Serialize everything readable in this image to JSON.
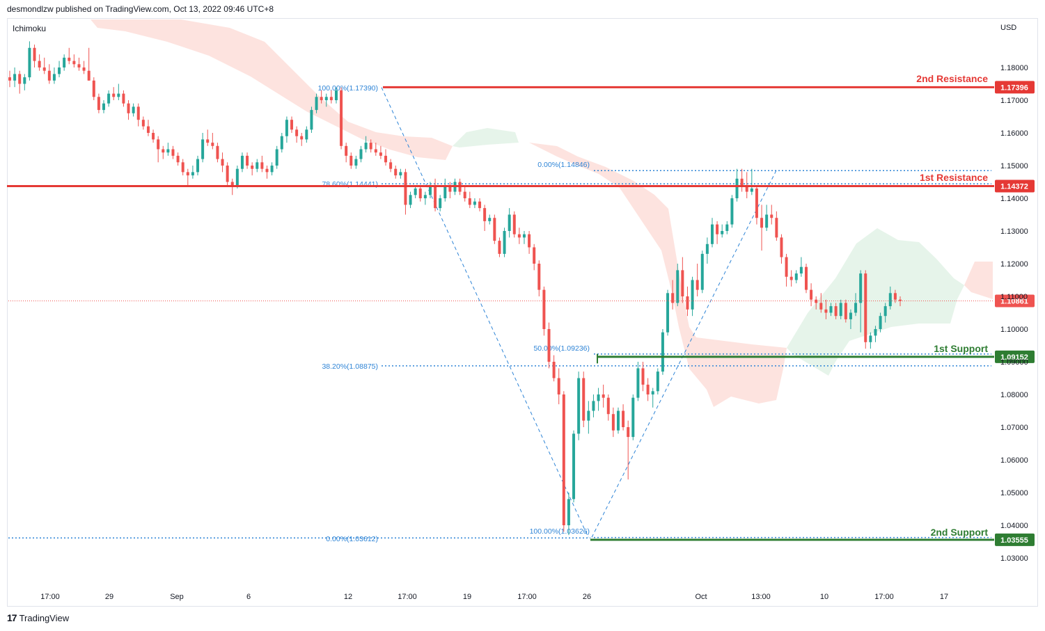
{
  "header": {
    "published": "desmondlzw published on TradingView.com, Oct 13, 2022 09:46 UTC+8",
    "indicator": "Ichimoku",
    "currency": "USD",
    "footer_brand": "TradingView",
    "footer_logo": "17"
  },
  "colors": {
    "up": "#26a69a",
    "down": "#ef5350",
    "resistance": "#e53935",
    "support": "#2e7d32",
    "fib": "#2e84d6",
    "cloud_bear": "#fde0dc",
    "cloud_bull": "#e6f4ea"
  },
  "chart_data": {
    "type": "candlestick",
    "ylim": [
      1.025,
      1.19
    ],
    "y_ticks": [
      "1.18000",
      "1.17000",
      "1.16000",
      "1.15000",
      "1.14000",
      "1.13000",
      "1.12000",
      "1.11000",
      "1.10000",
      "1.09000",
      "1.08000",
      "1.07000",
      "1.06000",
      "1.05000",
      "1.04000",
      "1.03000"
    ],
    "x_ticks": [
      "17:00",
      "29",
      "Sep",
      "6",
      "12",
      "17:00",
      "19",
      "17:00",
      "26",
      "Oct",
      "13:00",
      "10",
      "17:00",
      "17"
    ],
    "levels": [
      {
        "name": "2nd Resistance",
        "value": 1.17396,
        "tag": "1.17396",
        "kind": "resistance"
      },
      {
        "name": "1st Resistance",
        "value": 1.14372,
        "tag": "1.14372",
        "kind": "resistance"
      },
      {
        "name": "1st Support",
        "value": 1.09152,
        "tag": "1.09152",
        "kind": "support"
      },
      {
        "name": "2nd Support",
        "value": 1.03555,
        "tag": "1.03555",
        "kind": "support"
      }
    ],
    "current_price": {
      "value": 1.10861,
      "tag": "1.10861"
    },
    "fib_labels": [
      {
        "text": "100.00%(1.17390)",
        "value": 1.1739
      },
      {
        "text": "78.60%(1.14441)",
        "value": 1.14441
      },
      {
        "text": "38.20%(1.08875)",
        "value": 1.08875
      },
      {
        "text": "0.00%(1.03612)",
        "value": 1.03612
      },
      {
        "text": "0.00%(1.14846)",
        "value": 1.14846
      },
      {
        "text": "50.00%(1.09236)",
        "value": 1.09236
      },
      {
        "text": "100.00%(1.03626)",
        "value": 1.03626
      }
    ],
    "candles": [
      [
        1.177,
        1.179,
        1.174,
        1.176
      ],
      [
        1.176,
        1.18,
        1.174,
        1.178
      ],
      [
        1.178,
        1.179,
        1.172,
        1.175
      ],
      [
        1.175,
        1.178,
        1.173,
        1.177
      ],
      [
        1.177,
        1.188,
        1.176,
        1.186
      ],
      [
        1.186,
        1.187,
        1.18,
        1.182
      ],
      [
        1.182,
        1.184,
        1.179,
        1.18
      ],
      [
        1.18,
        1.183,
        1.178,
        1.179
      ],
      [
        1.179,
        1.181,
        1.175,
        1.176
      ],
      [
        1.176,
        1.18,
        1.175,
        1.178
      ],
      [
        1.178,
        1.182,
        1.177,
        1.18
      ],
      [
        1.18,
        1.184,
        1.179,
        1.183
      ],
      [
        1.183,
        1.186,
        1.181,
        1.182
      ],
      [
        1.182,
        1.184,
        1.18,
        1.181
      ],
      [
        1.181,
        1.183,
        1.179,
        1.18
      ],
      [
        1.18,
        1.182,
        1.178,
        1.179
      ],
      [
        1.179,
        1.186,
        1.176,
        1.176
      ],
      [
        1.176,
        1.177,
        1.17,
        1.171
      ],
      [
        1.171,
        1.172,
        1.166,
        1.167
      ],
      [
        1.167,
        1.17,
        1.166,
        1.169
      ],
      [
        1.169,
        1.173,
        1.168,
        1.172
      ],
      [
        1.172,
        1.174,
        1.17,
        1.171
      ],
      [
        1.171,
        1.175,
        1.17,
        1.172
      ],
      [
        1.172,
        1.173,
        1.168,
        1.169
      ],
      [
        1.169,
        1.17,
        1.164,
        1.166
      ],
      [
        1.166,
        1.169,
        1.165,
        1.168
      ],
      [
        1.168,
        1.169,
        1.162,
        1.164
      ],
      [
        1.164,
        1.165,
        1.161,
        1.162
      ],
      [
        1.162,
        1.164,
        1.159,
        1.16
      ],
      [
        1.16,
        1.161,
        1.157,
        1.158
      ],
      [
        1.158,
        1.159,
        1.151,
        1.155
      ],
      [
        1.155,
        1.156,
        1.152,
        1.154
      ],
      [
        1.154,
        1.157,
        1.153,
        1.155
      ],
      [
        1.155,
        1.156,
        1.152,
        1.153
      ],
      [
        1.153,
        1.154,
        1.15,
        1.151
      ],
      [
        1.151,
        1.152,
        1.147,
        1.148
      ],
      [
        1.148,
        1.149,
        1.144,
        1.147
      ],
      [
        1.147,
        1.15,
        1.146,
        1.148
      ],
      [
        1.148,
        1.153,
        1.147,
        1.152
      ],
      [
        1.152,
        1.16,
        1.151,
        1.158
      ],
      [
        1.158,
        1.161,
        1.156,
        1.157
      ],
      [
        1.157,
        1.16,
        1.155,
        1.156
      ],
      [
        1.156,
        1.157,
        1.151,
        1.152
      ],
      [
        1.152,
        1.154,
        1.148,
        1.15
      ],
      [
        1.15,
        1.151,
        1.144,
        1.145
      ],
      [
        1.145,
        1.146,
        1.141,
        1.144
      ],
      [
        1.144,
        1.15,
        1.143,
        1.149
      ],
      [
        1.149,
        1.154,
        1.148,
        1.153
      ],
      [
        1.153,
        1.154,
        1.149,
        1.15
      ],
      [
        1.15,
        1.151,
        1.147,
        1.149
      ],
      [
        1.149,
        1.152,
        1.148,
        1.151
      ],
      [
        1.151,
        1.153,
        1.148,
        1.149
      ],
      [
        1.149,
        1.15,
        1.146,
        1.148
      ],
      [
        1.148,
        1.151,
        1.147,
        1.15
      ],
      [
        1.15,
        1.156,
        1.149,
        1.155
      ],
      [
        1.155,
        1.16,
        1.154,
        1.159
      ],
      [
        1.159,
        1.165,
        1.157,
        1.164
      ],
      [
        1.164,
        1.165,
        1.16,
        1.161
      ],
      [
        1.161,
        1.162,
        1.157,
        1.159
      ],
      [
        1.159,
        1.16,
        1.156,
        1.158
      ],
      [
        1.158,
        1.162,
        1.157,
        1.161
      ],
      [
        1.161,
        1.168,
        1.16,
        1.167
      ],
      [
        1.167,
        1.172,
        1.166,
        1.171
      ],
      [
        1.171,
        1.173,
        1.169,
        1.17
      ],
      [
        1.17,
        1.172,
        1.168,
        1.171
      ],
      [
        1.171,
        1.173,
        1.169,
        1.17
      ],
      [
        1.17,
        1.1739,
        1.169,
        1.173
      ],
      [
        1.173,
        1.1739,
        1.155,
        1.156
      ],
      [
        1.156,
        1.157,
        1.151,
        1.153
      ],
      [
        1.153,
        1.154,
        1.149,
        1.15
      ],
      [
        1.15,
        1.153,
        1.149,
        1.152
      ],
      [
        1.152,
        1.156,
        1.151,
        1.155
      ],
      [
        1.155,
        1.159,
        1.154,
        1.157
      ],
      [
        1.157,
        1.158,
        1.154,
        1.155
      ],
      [
        1.155,
        1.157,
        1.153,
        1.154
      ],
      [
        1.154,
        1.156,
        1.152,
        1.153
      ],
      [
        1.153,
        1.155,
        1.15,
        1.151
      ],
      [
        1.151,
        1.152,
        1.148,
        1.149
      ],
      [
        1.149,
        1.15,
        1.146,
        1.147
      ],
      [
        1.147,
        1.149,
        1.146,
        1.148
      ],
      [
        1.148,
        1.149,
        1.135,
        1.138
      ],
      [
        1.138,
        1.142,
        1.137,
        1.141
      ],
      [
        1.141,
        1.144,
        1.14,
        1.143
      ],
      [
        1.143,
        1.144,
        1.139,
        1.14
      ],
      [
        1.14,
        1.142,
        1.138,
        1.141
      ],
      [
        1.141,
        1.145,
        1.14,
        1.144
      ],
      [
        1.144,
        1.146,
        1.136,
        1.137
      ],
      [
        1.137,
        1.141,
        1.136,
        1.14
      ],
      [
        1.14,
        1.146,
        1.139,
        1.144
      ],
      [
        1.144,
        1.145,
        1.14,
        1.142
      ],
      [
        1.142,
        1.146,
        1.141,
        1.145
      ],
      [
        1.145,
        1.146,
        1.141,
        1.142
      ],
      [
        1.142,
        1.144,
        1.139,
        1.14
      ],
      [
        1.14,
        1.142,
        1.137,
        1.138
      ],
      [
        1.138,
        1.14,
        1.137,
        1.139
      ],
      [
        1.139,
        1.14,
        1.136,
        1.137
      ],
      [
        1.137,
        1.138,
        1.13,
        1.133
      ],
      [
        1.133,
        1.135,
        1.132,
        1.134
      ],
      [
        1.134,
        1.135,
        1.126,
        1.127
      ],
      [
        1.127,
        1.128,
        1.122,
        1.123
      ],
      [
        1.123,
        1.131,
        1.122,
        1.13
      ],
      [
        1.13,
        1.137,
        1.128,
        1.135
      ],
      [
        1.135,
        1.136,
        1.128,
        1.129
      ],
      [
        1.129,
        1.131,
        1.126,
        1.128
      ],
      [
        1.128,
        1.13,
        1.126,
        1.129
      ],
      [
        1.129,
        1.13,
        1.123,
        1.125
      ],
      [
        1.125,
        1.126,
        1.118,
        1.12
      ],
      [
        1.12,
        1.121,
        1.11,
        1.112
      ],
      [
        1.112,
        1.113,
        1.098,
        1.1
      ],
      [
        1.1,
        1.102,
        1.088,
        1.09
      ],
      [
        1.09,
        1.092,
        1.084,
        1.085
      ],
      [
        1.085,
        1.088,
        1.077,
        1.08
      ],
      [
        1.08,
        1.081,
        1.038,
        1.04
      ],
      [
        1.04,
        1.05,
        1.037,
        1.048
      ],
      [
        1.048,
        1.069,
        1.047,
        1.068
      ],
      [
        1.068,
        1.087,
        1.066,
        1.085
      ],
      [
        1.085,
        1.087,
        1.07,
        1.072
      ],
      [
        1.072,
        1.078,
        1.068,
        1.075
      ],
      [
        1.075,
        1.08,
        1.073,
        1.078
      ],
      [
        1.078,
        1.082,
        1.075,
        1.08
      ],
      [
        1.08,
        1.083,
        1.076,
        1.079
      ],
      [
        1.079,
        1.08,
        1.072,
        1.074
      ],
      [
        1.074,
        1.076,
        1.067,
        1.069
      ],
      [
        1.069,
        1.076,
        1.068,
        1.075
      ],
      [
        1.075,
        1.077,
        1.069,
        1.07
      ],
      [
        1.07,
        1.072,
        1.054,
        1.067
      ],
      [
        1.067,
        1.08,
        1.066,
        1.079
      ],
      [
        1.079,
        1.09,
        1.078,
        1.088
      ],
      [
        1.088,
        1.09,
        1.081,
        1.083
      ],
      [
        1.083,
        1.085,
        1.078,
        1.08
      ],
      [
        1.08,
        1.082,
        1.076,
        1.081
      ],
      [
        1.081,
        1.088,
        1.08,
        1.087
      ],
      [
        1.087,
        1.1,
        1.086,
        1.099
      ],
      [
        1.099,
        1.112,
        1.098,
        1.111
      ],
      [
        1.111,
        1.115,
        1.106,
        1.108
      ],
      [
        1.108,
        1.12,
        1.107,
        1.118
      ],
      [
        1.118,
        1.122,
        1.108,
        1.11
      ],
      [
        1.11,
        1.113,
        1.104,
        1.106
      ],
      [
        1.106,
        1.116,
        1.104,
        1.115
      ],
      [
        1.115,
        1.12,
        1.11,
        1.112
      ],
      [
        1.112,
        1.124,
        1.111,
        1.123
      ],
      [
        1.123,
        1.128,
        1.12,
        1.126
      ],
      [
        1.126,
        1.134,
        1.125,
        1.132
      ],
      [
        1.132,
        1.133,
        1.126,
        1.129
      ],
      [
        1.129,
        1.132,
        1.128,
        1.13
      ],
      [
        1.13,
        1.133,
        1.129,
        1.132
      ],
      [
        1.132,
        1.141,
        1.131,
        1.14
      ],
      [
        1.14,
        1.149,
        1.139,
        1.146
      ],
      [
        1.146,
        1.149,
        1.142,
        1.144
      ],
      [
        1.144,
        1.148,
        1.14,
        1.142
      ],
      [
        1.142,
        1.149,
        1.141,
        1.143
      ],
      [
        1.143,
        1.144,
        1.132,
        1.134
      ],
      [
        1.134,
        1.138,
        1.124,
        1.131
      ],
      [
        1.131,
        1.138,
        1.13,
        1.135
      ],
      [
        1.135,
        1.138,
        1.132,
        1.134
      ],
      [
        1.134,
        1.136,
        1.127,
        1.128
      ],
      [
        1.128,
        1.129,
        1.12,
        1.122
      ],
      [
        1.122,
        1.123,
        1.113,
        1.116
      ],
      [
        1.116,
        1.118,
        1.113,
        1.115
      ],
      [
        1.115,
        1.118,
        1.114,
        1.117
      ],
      [
        1.117,
        1.122,
        1.116,
        1.119
      ],
      [
        1.119,
        1.12,
        1.111,
        1.112
      ],
      [
        1.112,
        1.114,
        1.107,
        1.109
      ],
      [
        1.109,
        1.11,
        1.106,
        1.108
      ],
      [
        1.108,
        1.111,
        1.105,
        1.106
      ],
      [
        1.106,
        1.109,
        1.103,
        1.105
      ],
      [
        1.105,
        1.108,
        1.104,
        1.107
      ],
      [
        1.107,
        1.108,
        1.103,
        1.104
      ],
      [
        1.104,
        1.109,
        1.103,
        1.108
      ],
      [
        1.108,
        1.109,
        1.102,
        1.103
      ],
      [
        1.103,
        1.106,
        1.1,
        1.105
      ],
      [
        1.105,
        1.111,
        1.104,
        1.108
      ],
      [
        1.108,
        1.118,
        1.099,
        1.117
      ],
      [
        1.117,
        1.118,
        1.094,
        1.096
      ],
      [
        1.096,
        1.099,
        1.094,
        1.098
      ],
      [
        1.098,
        1.101,
        1.096,
        1.1
      ],
      [
        1.1,
        1.105,
        1.099,
        1.104
      ],
      [
        1.104,
        1.108,
        1.102,
        1.107
      ],
      [
        1.107,
        1.113,
        1.106,
        1.111
      ],
      [
        1.111,
        1.112,
        1.108,
        1.109
      ],
      [
        1.109,
        1.11,
        1.107,
        1.1086
      ]
    ]
  }
}
